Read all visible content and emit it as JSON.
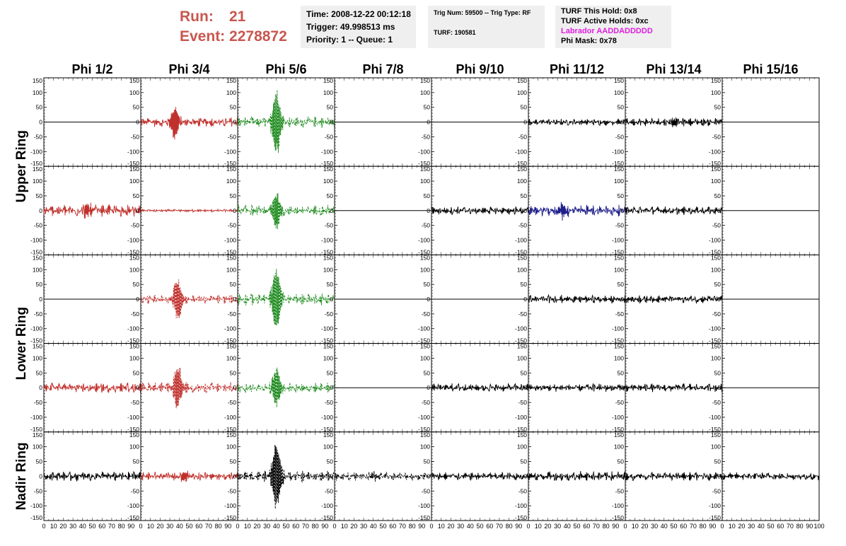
{
  "header": {
    "run_label": "Run:",
    "run_value": "21",
    "event_label": "Event:",
    "event_value": "2278872",
    "time_box": {
      "line1": "Time: 2008-12-22 00:12:18",
      "line2": "Trigger: 49.998513 ms",
      "line3": "Priority: 1 -- Queue: 1"
    },
    "trig_box": {
      "line1": "Trig Num: 59500 -- Trig Type: RF",
      "line2": "TURF: 190581"
    },
    "turf_box": {
      "line1": "TURF This Hold: 0x8",
      "line2": "TURF Active Holds: 0xc",
      "line3": "Labrador AADDADDDDD",
      "line4": "Phi Mask: 0x78"
    }
  },
  "colors": {
    "red": "#c0302c",
    "green": "#1e8a1e",
    "blue": "#1e1e8a",
    "black": "#000000",
    "header_red": "#c8574f",
    "labrador_magenta": "#e01ee0"
  },
  "chart_data": {
    "type": "line",
    "columns": [
      "Phi 1/2",
      "Phi 3/4",
      "Phi 5/6",
      "Phi 7/8",
      "Phi 9/10",
      "Phi 11/12",
      "Phi 13/14",
      "Phi 15/16"
    ],
    "row_labels": [
      {
        "label": "Upper Ring",
        "rows": [
          0,
          1
        ]
      },
      {
        "label": "Lower Ring",
        "rows": [
          2,
          3
        ]
      },
      {
        "label": "Nadir Ring",
        "rows": [
          4
        ]
      }
    ],
    "ylim": [
      -150,
      150
    ],
    "xlim": [
      0,
      100
    ],
    "y_tick_labels": [
      "150",
      "100",
      "50",
      "0",
      "-50",
      "-100",
      "-150"
    ],
    "x_tick_labels": [
      "0",
      "10",
      "20",
      "30",
      "40",
      "50",
      "60",
      "70",
      "80",
      "90",
      "100"
    ],
    "panels": [
      [
        {
          "color": "flat",
          "amp": 0,
          "burst": 0,
          "center": 50
        },
        {
          "color": "red",
          "amp": 18,
          "burst": 55,
          "center": 35
        },
        {
          "color": "green",
          "amp": 20,
          "burst": 110,
          "center": 40
        },
        {
          "color": "flat",
          "amp": 0,
          "burst": 0,
          "center": 50
        },
        {
          "color": "flat",
          "amp": 0,
          "burst": 0,
          "center": 50
        },
        {
          "color": "black",
          "amp": 12,
          "burst": 0,
          "center": 50
        },
        {
          "color": "black",
          "amp": 15,
          "burst": 10,
          "center": 50
        },
        {
          "color": "flat",
          "amp": 0,
          "burst": 0,
          "center": 50
        }
      ],
      [
        {
          "color": "red",
          "amp": 22,
          "burst": 20,
          "center": 45
        },
        {
          "color": "red",
          "amp": 5,
          "burst": 0,
          "center": 50
        },
        {
          "color": "green",
          "amp": 20,
          "burst": 60,
          "center": 40
        },
        {
          "color": "flat",
          "amp": 0,
          "burst": 0,
          "center": 50
        },
        {
          "color": "black",
          "amp": 15,
          "burst": 0,
          "center": 50
        },
        {
          "color": "blue",
          "amp": 20,
          "burst": 25,
          "center": 35
        },
        {
          "color": "black",
          "amp": 15,
          "burst": 0,
          "center": 50
        },
        {
          "color": "flat",
          "amp": 0,
          "burst": 0,
          "center": 50
        }
      ],
      [
        {
          "color": "flat",
          "amp": 0,
          "burst": 0,
          "center": 50
        },
        {
          "color": "red",
          "amp": 16,
          "burst": 70,
          "center": 38
        },
        {
          "color": "green",
          "amp": 22,
          "burst": 110,
          "center": 40
        },
        {
          "color": "flat",
          "amp": 0,
          "burst": 0,
          "center": 50
        },
        {
          "color": "flat",
          "amp": 0,
          "burst": 0,
          "center": 50
        },
        {
          "color": "black",
          "amp": 15,
          "burst": 0,
          "center": 50
        },
        {
          "color": "black",
          "amp": 15,
          "burst": 0,
          "center": 50
        },
        {
          "color": "flat",
          "amp": 0,
          "burst": 0,
          "center": 50
        }
      ],
      [
        {
          "color": "red",
          "amp": 18,
          "burst": 0,
          "center": 50
        },
        {
          "color": "red",
          "amp": 20,
          "burst": 75,
          "center": 38
        },
        {
          "color": "green",
          "amp": 18,
          "burst": 65,
          "center": 40
        },
        {
          "color": "flat",
          "amp": 0,
          "burst": 0,
          "center": 50
        },
        {
          "color": "black",
          "amp": 15,
          "burst": 0,
          "center": 50
        },
        {
          "color": "black",
          "amp": 15,
          "burst": 0,
          "center": 50
        },
        {
          "color": "black",
          "amp": 15,
          "burst": 0,
          "center": 50
        },
        {
          "color": "flat",
          "amp": 0,
          "burst": 0,
          "center": 50
        }
      ],
      [
        {
          "color": "black",
          "amp": 18,
          "burst": 0,
          "center": 50
        },
        {
          "color": "red",
          "amp": 15,
          "burst": 20,
          "center": 45
        },
        {
          "color": "black",
          "amp": 20,
          "burst": 120,
          "center": 40
        },
        {
          "color": "black",
          "amp": 15,
          "burst": 10,
          "center": 40
        },
        {
          "color": "black",
          "amp": 15,
          "burst": 0,
          "center": 50
        },
        {
          "color": "black",
          "amp": 18,
          "burst": 0,
          "center": 50
        },
        {
          "color": "black",
          "amp": 15,
          "burst": 0,
          "center": 50
        },
        {
          "color": "black",
          "amp": 14,
          "burst": 0,
          "center": 50
        }
      ]
    ]
  }
}
